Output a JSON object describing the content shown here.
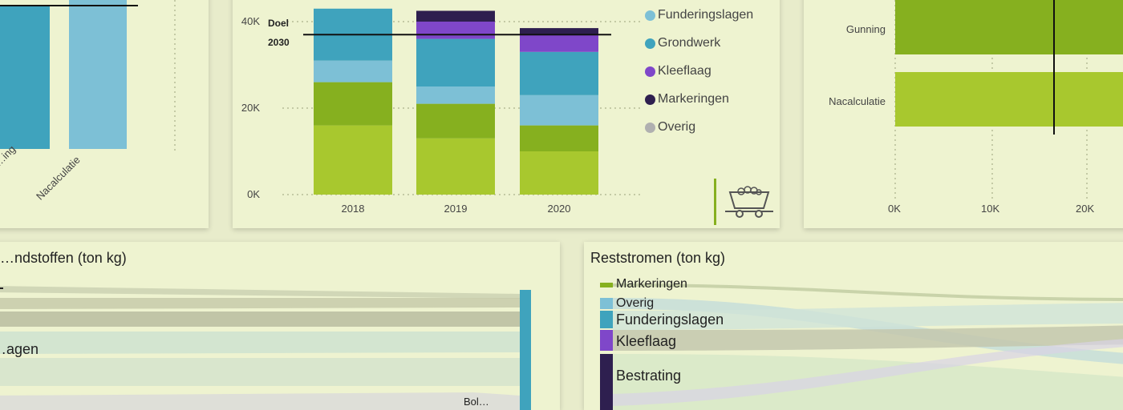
{
  "colors": {
    "page_bg": "#e8eccb",
    "card_bg": "#eef3d0",
    "lime": "#a8c82e",
    "green": "#86b01f",
    "lightblue": "#7dc0d6",
    "teal": "#3fa3bd",
    "purple": "#7f47c9",
    "navy": "#2e1f4f",
    "grey": "#b0b0b0"
  },
  "icons": {
    "cart": "mine-cart-icon"
  },
  "panel_left": {
    "x_labels": [
      "…ing",
      "Nacalculatie"
    ]
  },
  "panel_stacked": {
    "goal_label_line1": "Doel",
    "goal_label_line2": "2030",
    "legend": [
      {
        "label": "Funderingslagen",
        "color": "#7dc0d6"
      },
      {
        "label": "Grondwerk",
        "color": "#3fa3bd"
      },
      {
        "label": "Kleeflaag",
        "color": "#7f47c9"
      },
      {
        "label": "Markeringen",
        "color": "#2e1f4f"
      },
      {
        "label": "Overig",
        "color": "#b0b0b0"
      }
    ]
  },
  "panel_right": {
    "y_labels": [
      "Gunning",
      "Nacalculatie"
    ],
    "x_ticks": [
      "0K",
      "10K",
      "20K"
    ]
  },
  "panel_bottom_left": {
    "title": "…ndstoffen (ton kg)",
    "partial_labels": [
      "…agen",
      "Bol…"
    ]
  },
  "panel_bottom_right": {
    "title": "Reststromen (ton kg)",
    "nodes": [
      {
        "label": "Markeringen",
        "color": "#86b01f"
      },
      {
        "label": "Overig",
        "color": "#7dc0d6"
      },
      {
        "label": "Funderingslagen",
        "color": "#3fa3bd"
      },
      {
        "label": "Kleeflaag",
        "color": "#7f47c9"
      },
      {
        "label": "Bestrating",
        "color": "#2e1f4f"
      }
    ]
  },
  "chart_data": [
    {
      "type": "bar",
      "categories": [
        "…ing",
        "Nacalculatie"
      ],
      "values": [
        null,
        null
      ]
    },
    {
      "type": "bar",
      "stacked": true,
      "categories": [
        "2018",
        "2019",
        "2020"
      ],
      "yticks": [
        "0K",
        "20K",
        "40K"
      ],
      "ylim": [
        0,
        45000
      ],
      "goal_value": 37000,
      "series": [
        {
          "name": "Lime segment",
          "color": "#a8c82e",
          "values": [
            16000,
            13000,
            10000
          ]
        },
        {
          "name": "Green segment",
          "color": "#86b01f",
          "values": [
            10000,
            8000,
            6000
          ]
        },
        {
          "name": "Funderingslagen",
          "color": "#7dc0d6",
          "values": [
            5000,
            4000,
            7000
          ]
        },
        {
          "name": "Grondwerk",
          "color": "#3fa3bd",
          "values": [
            12000,
            11000,
            10000
          ]
        },
        {
          "name": "Kleeflaag",
          "color": "#7f47c9",
          "values": [
            0,
            4000,
            4000
          ]
        },
        {
          "name": "Markeringen",
          "color": "#2e1f4f",
          "values": [
            0,
            2500,
            1500
          ]
        },
        {
          "name": "Overig",
          "color": "#b0b0b0",
          "values": [
            0,
            0,
            0
          ]
        }
      ]
    },
    {
      "type": "bar",
      "orientation": "horizontal",
      "categories": [
        "Gunning",
        "Nacalculatie"
      ],
      "values": [
        null,
        null
      ],
      "xticks": [
        "0K",
        "10K",
        "20K"
      ]
    }
  ]
}
